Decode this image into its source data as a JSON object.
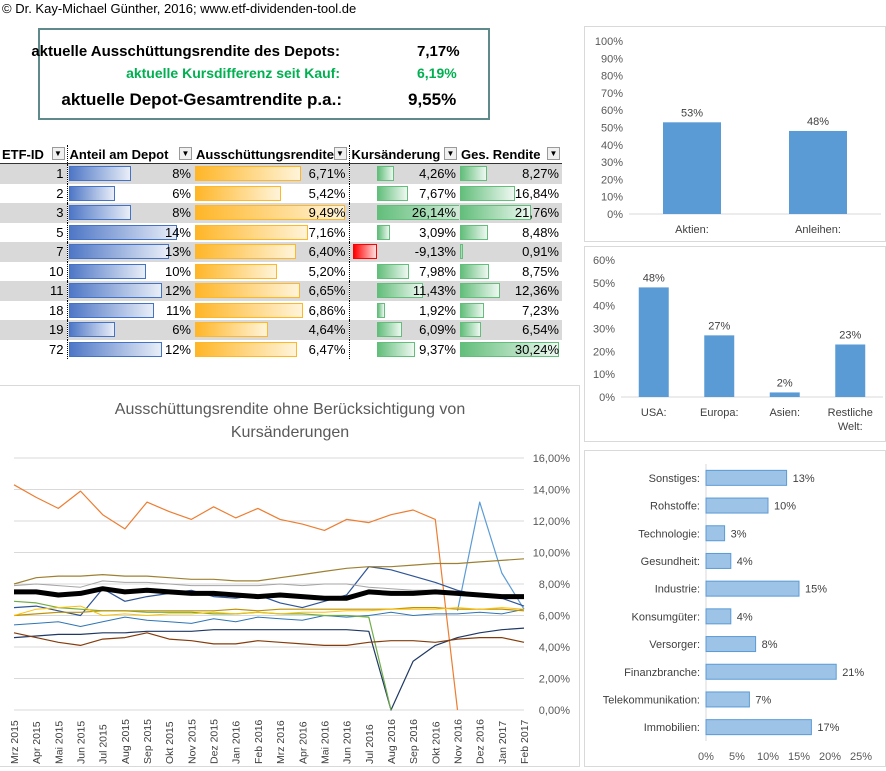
{
  "copyright": "© Dr. Kay-Michael Günther, 2016; www.etf-dividenden-tool.de",
  "summary": {
    "rows": [
      {
        "label": "aktuelle Ausschüttungsrendite des Depots:",
        "value": "7,17%"
      },
      {
        "label": "aktuelle Kursdifferenz seit Kauf:",
        "value": "6,19%"
      },
      {
        "label": "aktuelle Depot-Gesamtrendite p.a.:",
        "value": "9,55%"
      }
    ],
    "green_color": "#00b050"
  },
  "table": {
    "headers": [
      "ETF-ID",
      "Anteil am Depot",
      "Ausschüttungsrendite",
      "Kursänderung",
      "Ges. Rendite"
    ],
    "rows": [
      {
        "id": "1",
        "anteil": "8%",
        "anteil_v": 8,
        "aus": "6,71%",
        "aus_v": 6.71,
        "kurs": "4,26%",
        "kurs_v": 4.26,
        "ges": "8,27%",
        "ges_v": 8.27
      },
      {
        "id": "2",
        "anteil": "6%",
        "anteil_v": 6,
        "aus": "5,42%",
        "aus_v": 5.42,
        "kurs": "7,67%",
        "kurs_v": 7.67,
        "ges": "16,84%",
        "ges_v": 16.84
      },
      {
        "id": "3",
        "anteil": "8%",
        "anteil_v": 8,
        "aus": "9,49%",
        "aus_v": 9.49,
        "kurs": "26,14%",
        "kurs_v": 26.14,
        "ges": "21,76%",
        "ges_v": 21.76
      },
      {
        "id": "5",
        "anteil": "14%",
        "anteil_v": 14,
        "aus": "7,16%",
        "aus_v": 7.16,
        "kurs": "3,09%",
        "kurs_v": 3.09,
        "ges": "8,48%",
        "ges_v": 8.48
      },
      {
        "id": "7",
        "anteil": "13%",
        "anteil_v": 13,
        "aus": "6,40%",
        "aus_v": 6.4,
        "kurs": "-9,13%",
        "kurs_v": -9.13,
        "ges": "0,91%",
        "ges_v": 0.91
      },
      {
        "id": "10",
        "anteil": "10%",
        "anteil_v": 10,
        "aus": "5,20%",
        "aus_v": 5.2,
        "kurs": "7,98%",
        "kurs_v": 7.98,
        "ges": "8,75%",
        "ges_v": 8.75
      },
      {
        "id": "11",
        "anteil": "12%",
        "anteil_v": 12,
        "aus": "6,65%",
        "aus_v": 6.65,
        "kurs": "11,43%",
        "kurs_v": 11.43,
        "ges": "12,36%",
        "ges_v": 12.36
      },
      {
        "id": "18",
        "anteil": "11%",
        "anteil_v": 11,
        "aus": "6,86%",
        "aus_v": 6.86,
        "kurs": "1,92%",
        "kurs_v": 1.92,
        "ges": "7,23%",
        "ges_v": 7.23
      },
      {
        "id": "19",
        "anteil": "6%",
        "anteil_v": 6,
        "aus": "4,64%",
        "aus_v": 4.64,
        "kurs": "6,09%",
        "kurs_v": 6.09,
        "ges": "6,54%",
        "ges_v": 6.54
      },
      {
        "id": "72",
        "anteil": "12%",
        "anteil_v": 12,
        "aus": "6,47%",
        "aus_v": 6.47,
        "kurs": "9,37%",
        "kurs_v": 9.37,
        "ges": "30,24%",
        "ges_v": 30.24
      }
    ]
  },
  "chart_data": [
    {
      "type": "line",
      "title": "Ausschüttungsrendite ohne Berücksichtigung von Kursänderungen",
      "x": [
        "Mrz 2015",
        "Apr 2015",
        "Mai 2015",
        "Jun 2015",
        "Jul 2015",
        "Aug 2015",
        "Sep 2015",
        "Okt 2015",
        "Nov 2015",
        "Dez 2015",
        "Jan 2016",
        "Feb 2016",
        "Mrz 2016",
        "Apr 2016",
        "Mai 2016",
        "Jun 2016",
        "Jul 2016",
        "Aug 2016",
        "Sep 2016",
        "Okt 2016",
        "Nov 2016",
        "Dez 2016",
        "Jan 2017",
        "Feb 2017"
      ],
      "y_ticks": [
        "0,00%",
        "2,00%",
        "4,00%",
        "6,00%",
        "8,00%",
        "10,00%",
        "12,00%",
        "14,00%",
        "16,00%"
      ],
      "ylim": [
        0,
        16
      ],
      "series": [
        {
          "color": "#ed7d31",
          "width": 1.2,
          "values": [
            14.3,
            13.5,
            12.8,
            13.9,
            12.4,
            11.5,
            13.2,
            12.6,
            12.1,
            12.9,
            12.2,
            12.8,
            12.1,
            11.8,
            11.4,
            12.1,
            11.9,
            12.4,
            12.7,
            12.1,
            0.0,
            null,
            null,
            null
          ]
        },
        {
          "color": "#5b9bd5",
          "width": 1.2,
          "values": [
            null,
            null,
            null,
            null,
            null,
            null,
            null,
            null,
            null,
            null,
            null,
            null,
            null,
            null,
            null,
            null,
            null,
            null,
            null,
            null,
            6.3,
            13.2,
            8.7,
            6.4
          ]
        },
        {
          "color": "#2e5597",
          "width": 1.2,
          "values": [
            6.5,
            6.6,
            6.3,
            6.0,
            7.7,
            6.9,
            7.2,
            7.4,
            7.6,
            7.2,
            7.1,
            7.3,
            6.8,
            6.5,
            6.9,
            7.3,
            9.1,
            8.9,
            8.5,
            8.1,
            7.6,
            7.3,
            7.1,
            6.6
          ]
        },
        {
          "color": "#2e75b6",
          "width": 1.0,
          "values": [
            5.4,
            5.5,
            5.6,
            5.3,
            5.6,
            5.9,
            5.7,
            5.6,
            5.5,
            5.8,
            5.6,
            5.9,
            5.8,
            5.7,
            6.0,
            5.9,
            6.0,
            6.2,
            6.0,
            6.1,
            6.1,
            6.2,
            6.1,
            6.4
          ]
        },
        {
          "color": "#1f3864",
          "width": 1.2,
          "values": [
            4.6,
            4.7,
            4.8,
            4.8,
            4.9,
            4.9,
            5.0,
            5.0,
            5.0,
            5.1,
            5.1,
            5.1,
            5.1,
            5.1,
            5.1,
            5.1,
            5.0,
            0.0,
            3.1,
            4.1,
            4.6,
            4.9,
            5.1,
            5.2
          ]
        },
        {
          "color": "#70ad47",
          "width": 1.2,
          "values": [
            6.9,
            6.8,
            6.5,
            6.4,
            6.3,
            6.3,
            6.2,
            6.2,
            6.2,
            6.1,
            6.1,
            6.2,
            6.1,
            6.1,
            6.0,
            6.0,
            5.9,
            0.0,
            null,
            null,
            null,
            null,
            null,
            null
          ]
        },
        {
          "color": "#a5a5a5",
          "width": 1.0,
          "values": [
            7.9,
            8.0,
            7.9,
            7.8,
            8.2,
            8.1,
            8.1,
            8.0,
            7.9,
            7.9,
            7.9,
            7.9,
            8.0,
            7.9,
            8.0,
            8.0,
            7.8,
            7.7,
            7.6,
            7.6,
            7.5,
            7.4,
            7.3,
            7.2
          ]
        },
        {
          "color": "#9e8033",
          "width": 1.2,
          "values": [
            8.0,
            8.4,
            8.5,
            8.5,
            8.6,
            8.5,
            8.5,
            8.4,
            8.3,
            8.3,
            8.2,
            8.2,
            8.4,
            8.6,
            8.8,
            9.0,
            9.1,
            9.1,
            9.2,
            9.3,
            9.3,
            9.4,
            9.5,
            9.6
          ]
        },
        {
          "color": "#bf9000",
          "width": 1.2,
          "values": [
            6.0,
            6.1,
            6.2,
            6.2,
            6.3,
            6.3,
            6.3,
            6.3,
            6.3,
            6.3,
            6.4,
            6.3,
            6.4,
            6.4,
            6.4,
            6.4,
            6.4,
            6.4,
            6.5,
            6.5,
            6.4,
            6.4,
            6.4,
            6.3
          ]
        },
        {
          "color": "#ffc000",
          "width": 1.0,
          "values": [
            6.0,
            6.4,
            6.5,
            6.6,
            6.0,
            6.1,
            6.0,
            6.1,
            6.1,
            6.2,
            6.1,
            6.2,
            6.1,
            6.2,
            6.2,
            6.3,
            6.3,
            6.4,
            6.4,
            6.4,
            6.5,
            6.4,
            6.5,
            6.4
          ]
        },
        {
          "color": "#843c0c",
          "width": 1.2,
          "values": [
            4.9,
            4.6,
            4.3,
            4.1,
            4.5,
            4.6,
            4.9,
            4.5,
            4.4,
            4.2,
            4.2,
            4.4,
            4.3,
            4.2,
            4.1,
            4.1,
            4.3,
            4.4,
            4.4,
            4.3,
            4.5,
            4.6,
            4.6,
            4.3
          ]
        },
        {
          "color": "#000000",
          "width": 5,
          "values": [
            7.5,
            7.5,
            7.3,
            7.4,
            7.7,
            7.5,
            7.6,
            7.5,
            7.4,
            7.4,
            7.3,
            7.2,
            7.3,
            7.2,
            7.1,
            7.1,
            7.5,
            7.4,
            7.4,
            7.5,
            7.4,
            7.3,
            7.2,
            7.2
          ]
        }
      ]
    },
    {
      "type": "bar",
      "categories": [
        "Aktien:",
        "Anleihen:"
      ],
      "values": [
        53,
        48
      ],
      "labels": [
        "53%",
        "48%"
      ],
      "y_ticks": [
        "0%",
        "10%",
        "20%",
        "30%",
        "40%",
        "50%",
        "60%",
        "70%",
        "80%",
        "90%",
        "100%"
      ],
      "ylim": [
        0,
        100
      ],
      "color": "#5b9bd5"
    },
    {
      "type": "bar",
      "categories": [
        "USA:",
        "Europa:",
        "Asien:",
        "Restliche Welt:"
      ],
      "category_lines": [
        [
          "USA:"
        ],
        [
          "Europa:"
        ],
        [
          "Asien:"
        ],
        [
          "Restliche",
          "Welt:"
        ]
      ],
      "values": [
        48,
        27,
        2,
        23
      ],
      "labels": [
        "48%",
        "27%",
        "2%",
        "23%"
      ],
      "y_ticks": [
        "0%",
        "10%",
        "20%",
        "30%",
        "40%",
        "50%",
        "60%"
      ],
      "ylim": [
        0,
        60
      ],
      "color": "#5b9bd5"
    },
    {
      "type": "bar",
      "orientation": "horizontal",
      "categories": [
        "Sonstiges:",
        "Rohstoffe:",
        "Technologie:",
        "Gesundheit:",
        "Industrie:",
        "Konsumgüter:",
        "Versorger:",
        "Finanzbranche:",
        "Telekommunikation:",
        "Immobilien:"
      ],
      "values": [
        13,
        10,
        3,
        4,
        15,
        4,
        8,
        21,
        7,
        17
      ],
      "labels": [
        "13%",
        "10%",
        "3%",
        "4%",
        "15%",
        "4%",
        "8%",
        "21%",
        "7%",
        "17%"
      ],
      "x_ticks": [
        "0%",
        "5%",
        "10%",
        "15%",
        "20%",
        "25%"
      ],
      "xlim": [
        0,
        25
      ],
      "color": "#9dc3e6"
    }
  ]
}
